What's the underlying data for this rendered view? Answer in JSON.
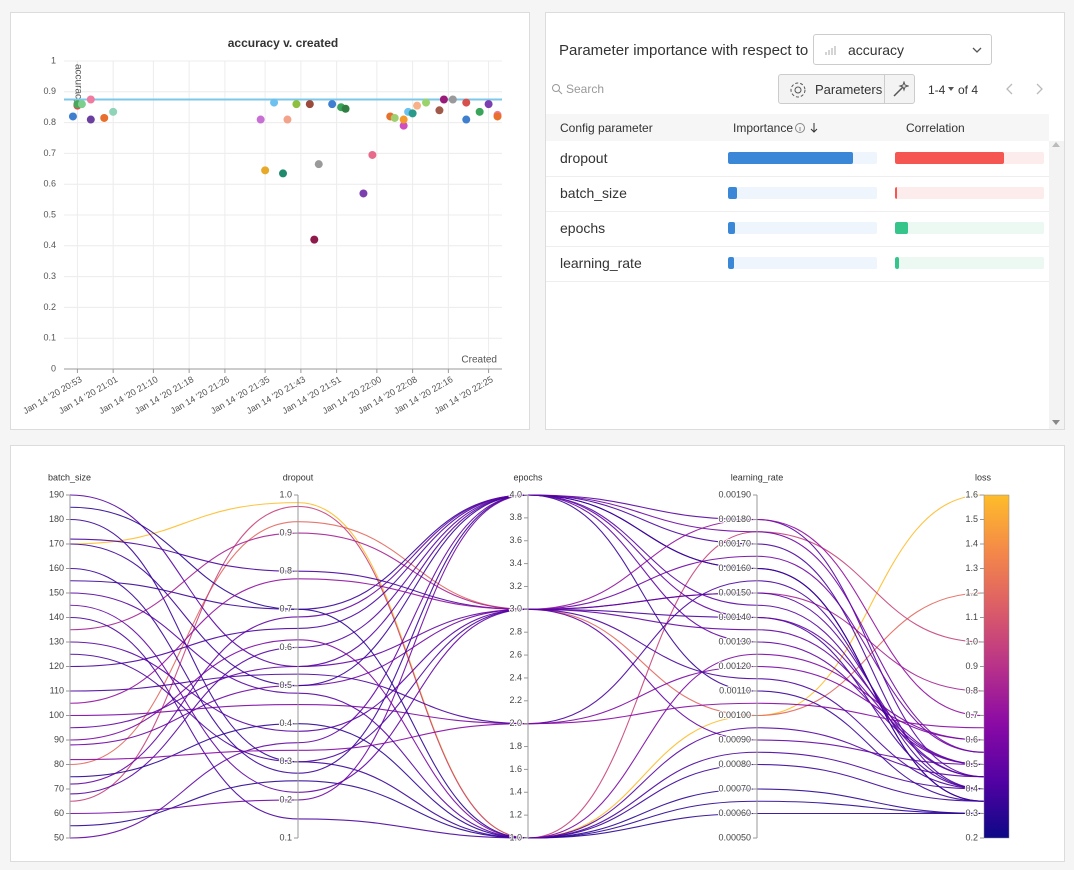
{
  "chart_data": [
    {
      "type": "scatter",
      "title": "accuracy v. created",
      "y_label": "accuracy",
      "x_label": "Created",
      "xlim": [
        "2020-01-14 20:50",
        "2020-01-14 22:28"
      ],
      "xticks": [
        {
          "value": "2020-01-14 20:53",
          "label": "Jan 14 '20 20:53"
        },
        {
          "value": "2020-01-14 21:01",
          "label": "Jan 14 '20 21:01"
        },
        {
          "value": "2020-01-14 21:10",
          "label": "Jan 14 '20 21:10"
        },
        {
          "value": "2020-01-14 21:18",
          "label": "Jan 14 '20 21:18"
        },
        {
          "value": "2020-01-14 21:26",
          "label": "Jan 14 '20 21:26"
        },
        {
          "value": "2020-01-14 21:35",
          "label": "Jan 14 '20 21:35"
        },
        {
          "value": "2020-01-14 21:43",
          "label": "Jan 14 '20 21:43"
        },
        {
          "value": "2020-01-14 21:51",
          "label": "Jan 14 '20 21:51"
        },
        {
          "value": "2020-01-14 22:00",
          "label": "Jan 14 '20 22:00"
        },
        {
          "value": "2020-01-14 22:08",
          "label": "Jan 14 '20 22:08"
        },
        {
          "value": "2020-01-14 22:16",
          "label": "Jan 14 '20 22:16"
        },
        {
          "value": "2020-01-14 22:25",
          "label": "Jan 14 '20 22:25"
        }
      ],
      "ylim": [
        0,
        1
      ],
      "yticks": [
        0,
        0.1,
        0.2,
        0.3,
        0.4,
        0.5,
        0.6,
        0.7,
        0.8,
        0.9,
        1
      ],
      "grid": true,
      "reference_line": 0.875,
      "reference_color": "#7cc8ea",
      "x": [
        "2020-01-14 20:52",
        "2020-01-14 20:53",
        "2020-01-14 20:53",
        "2020-01-14 20:54",
        "2020-01-14 20:56",
        "2020-01-14 20:56",
        "2020-01-14 20:59",
        "2020-01-14 21:01",
        "2020-01-14 21:34",
        "2020-01-14 21:35",
        "2020-01-14 21:37",
        "2020-01-14 21:39",
        "2020-01-14 21:40",
        "2020-01-14 21:42",
        "2020-01-14 21:45",
        "2020-01-14 21:46",
        "2020-01-14 21:47",
        "2020-01-14 21:50",
        "2020-01-14 21:52",
        "2020-01-14 21:53",
        "2020-01-14 21:57",
        "2020-01-14 21:59",
        "2020-01-14 22:03",
        "2020-01-14 22:04",
        "2020-01-14 22:06",
        "2020-01-14 22:06",
        "2020-01-14 22:07",
        "2020-01-14 22:08",
        "2020-01-14 22:09",
        "2020-01-14 22:11",
        "2020-01-14 22:14",
        "2020-01-14 22:15",
        "2020-01-14 22:17",
        "2020-01-14 22:20",
        "2020-01-14 22:20",
        "2020-01-14 22:23",
        "2020-01-14 22:25",
        "2020-01-14 22:27",
        "2020-01-14 22:27"
      ],
      "values": [
        0.82,
        0.855,
        0.86,
        0.86,
        0.81,
        0.875,
        0.815,
        0.835,
        0.81,
        0.645,
        0.865,
        0.635,
        0.81,
        0.86,
        0.86,
        0.42,
        0.665,
        0.86,
        0.85,
        0.845,
        0.57,
        0.695,
        0.82,
        0.815,
        0.79,
        0.81,
        0.835,
        0.83,
        0.855,
        0.865,
        0.84,
        0.875,
        0.875,
        0.81,
        0.865,
        0.835,
        0.86,
        0.825,
        0.82
      ],
      "colors": [
        "#3e7fd0",
        "#d7504c",
        "#4aa85c",
        "#7ccf8c",
        "#6a3fa0",
        "#f07aa0",
        "#e86f2c",
        "#8fd3b8",
        "#c86fd6",
        "#e8a928",
        "#6cc1ef",
        "#1f8a6e",
        "#f2a38a",
        "#8fbf3f",
        "#9b4a3c",
        "#8e1a4a",
        "#9a9a9a",
        "#3e7fd0",
        "#3aa55a",
        "#2f7f42",
        "#7b3fb0",
        "#e86a8a",
        "#e86f2c",
        "#9fcf6f",
        "#d04fc0",
        "#f39a2c",
        "#6cc1ef",
        "#2a9a8a",
        "#f7b28a",
        "#9ad36a",
        "#a05a4a",
        "#9a1a7a",
        "#9a9a9a",
        "#3e7fd0",
        "#d7504c",
        "#3aa55a",
        "#7b3fb0",
        "#f07aa0",
        "#e86f2c"
      ]
    },
    {
      "type": "parallel",
      "color_by": "loss",
      "colorscale": [
        "#0d0887",
        "#5302a3",
        "#8b0aa5",
        "#b83289",
        "#db5c68",
        "#f48849",
        "#febd2a"
      ],
      "dimensions": [
        {
          "name": "batch_size",
          "lim": [
            50,
            190
          ],
          "ticks": [
            50,
            60,
            70,
            80,
            90,
            100,
            110,
            120,
            130,
            140,
            150,
            160,
            170,
            180,
            190
          ]
        },
        {
          "name": "dropout",
          "lim": [
            0.1,
            1.0
          ],
          "ticks": [
            0.1,
            0.2,
            0.3,
            0.4,
            0.5,
            0.6,
            0.7,
            0.8,
            0.9,
            {
              "value": 1.0,
              "label": "1.0"
            }
          ]
        },
        {
          "name": "epochs",
          "lim": [
            1.0,
            4.0
          ],
          "ticks": [
            {
              "value": 1.0,
              "label": "1.0"
            },
            1.2,
            1.4,
            1.6,
            1.8,
            {
              "value": 2.0,
              "label": "2.0"
            },
            2.2,
            2.4,
            2.6,
            2.8,
            {
              "value": 3.0,
              "label": "3.0"
            },
            3.2,
            3.4,
            3.6,
            3.8,
            {
              "value": 4.0,
              "label": "4.0"
            }
          ]
        },
        {
          "name": "learning_rate",
          "lim": [
            0.0005,
            0.0019
          ],
          "ticks": [
            {
              "value": 0.0005,
              "label": "0.00050"
            },
            {
              "value": 0.0006,
              "label": "0.00060"
            },
            {
              "value": 0.0007,
              "label": "0.00070"
            },
            {
              "value": 0.0008,
              "label": "0.00080"
            },
            {
              "value": 0.0009,
              "label": "0.00090"
            },
            {
              "value": 0.001,
              "label": "0.00100"
            },
            {
              "value": 0.0011,
              "label": "0.00110"
            },
            {
              "value": 0.0012,
              "label": "0.00120"
            },
            {
              "value": 0.0013,
              "label": "0.00130"
            },
            {
              "value": 0.0014,
              "label": "0.00140"
            },
            {
              "value": 0.0015,
              "label": "0.00150"
            },
            {
              "value": 0.0016,
              "label": "0.00160"
            },
            {
              "value": 0.0017,
              "label": "0.00170"
            },
            {
              "value": 0.0018,
              "label": "0.00180"
            },
            {
              "value": 0.0019,
              "label": "0.00190"
            }
          ]
        },
        {
          "name": "loss",
          "lim": [
            0.2,
            1.6
          ],
          "ticks": [
            0.2,
            0.3,
            0.4,
            0.5,
            0.6,
            0.7,
            0.8,
            0.9,
            {
              "value": 1.0,
              "label": "1.0"
            },
            1.1,
            1.2,
            1.3,
            1.4,
            1.5,
            1.6
          ]
        }
      ],
      "runs": [
        [
          170,
          0.98,
          1,
          0.001,
          1.6
        ],
        [
          80,
          0.93,
          3,
          0.001,
          1.2
        ],
        [
          65,
          0.97,
          1,
          0.00175,
          1.0
        ],
        [
          135,
          0.9,
          3,
          0.0015,
          0.8
        ],
        [
          190,
          0.55,
          4,
          0.0018,
          0.45
        ],
        [
          172,
          0.8,
          3,
          0.0014,
          0.4
        ],
        [
          155,
          0.7,
          4,
          0.0016,
          0.35
        ],
        [
          50,
          0.35,
          4,
          0.0013,
          0.5
        ],
        [
          55,
          0.25,
          1,
          0.0006,
          0.3
        ],
        [
          88,
          0.5,
          3,
          0.00165,
          0.55
        ],
        [
          100,
          0.45,
          2,
          0.0012,
          0.6
        ],
        [
          120,
          0.65,
          4,
          0.0017,
          0.4
        ],
        [
          180,
          0.3,
          1,
          0.0008,
          0.35
        ],
        [
          145,
          0.22,
          3,
          0.0009,
          0.5
        ],
        [
          68,
          0.6,
          4,
          0.00145,
          0.45
        ],
        [
          75,
          0.4,
          1,
          0.0007,
          0.3
        ],
        [
          110,
          0.53,
          2,
          0.00155,
          0.4
        ],
        [
          160,
          0.27,
          4,
          0.0011,
          0.35
        ],
        [
          90,
          0.62,
          1,
          0.00125,
          0.6
        ],
        [
          130,
          0.38,
          3,
          0.0015,
          0.45
        ],
        [
          185,
          0.7,
          1,
          0.00065,
          0.3
        ],
        [
          60,
          0.2,
          4,
          0.00175,
          0.55
        ],
        [
          95,
          0.55,
          3,
          0.00135,
          0.5
        ],
        [
          140,
          0.15,
          1,
          0.00085,
          0.4
        ],
        [
          82,
          0.33,
          2,
          0.00105,
          0.65
        ],
        [
          170,
          0.5,
          4,
          0.0016,
          0.35
        ],
        [
          105,
          0.78,
          3,
          0.0018,
          0.7
        ],
        [
          150,
          0.48,
          1,
          0.00095,
          0.45
        ],
        [
          72,
          0.68,
          4,
          0.0014,
          0.5
        ],
        [
          125,
          0.3,
          3,
          0.00115,
          0.4
        ]
      ]
    }
  ],
  "importance_panel": {
    "title": "Parameter importance with respect to",
    "metric": "accuracy",
    "search_placeholder": "Search",
    "button": "Parameters",
    "page_range": "1-4",
    "page_total": "of 4",
    "columns": [
      "Config parameter",
      "Importance",
      "Correlation"
    ],
    "importance_color": "#3a87d8",
    "importance_track": "#eef5fc",
    "positive_color": "#35c48a",
    "positive_track": "#ebf9f2",
    "negative_color": "#f65651",
    "negative_track": "#fdecec",
    "rows": [
      {
        "parameter": "dropout",
        "importance": 0.84,
        "correlation": -0.73
      },
      {
        "parameter": "batch_size",
        "importance": 0.06,
        "correlation": -0.01
      },
      {
        "parameter": "epochs",
        "importance": 0.05,
        "correlation": 0.09
      },
      {
        "parameter": "learning_rate",
        "importance": 0.04,
        "correlation": 0.03
      }
    ]
  }
}
